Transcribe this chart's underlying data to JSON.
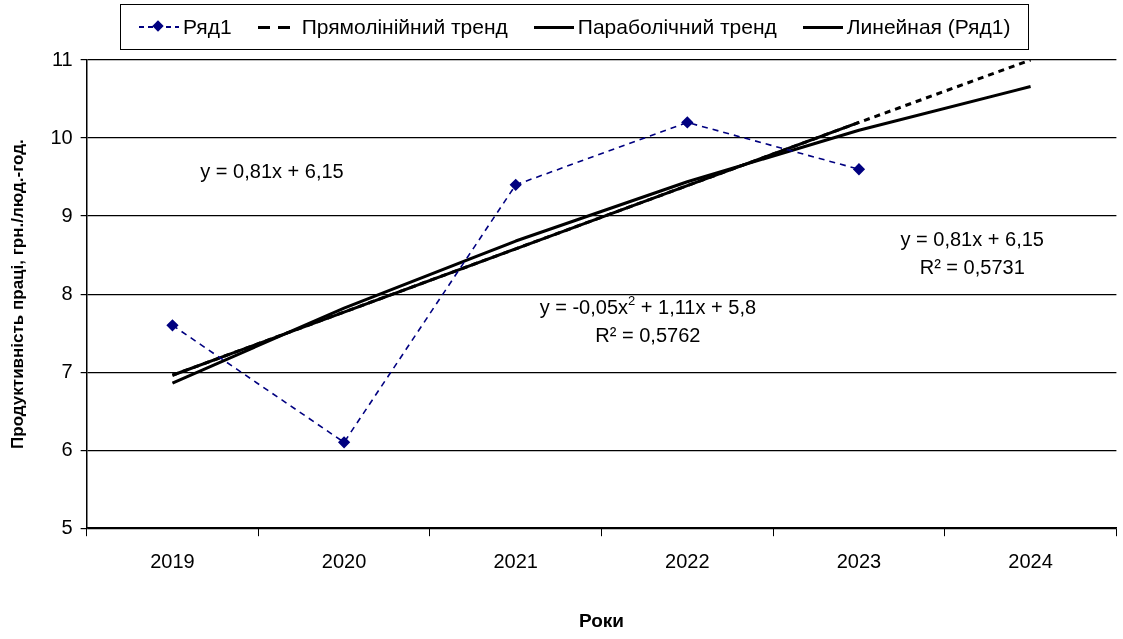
{
  "chart_data": {
    "type": "line",
    "xlabel": "Роки",
    "ylabel": "Продуктивність праці, грн./люд.-год.",
    "categories": [
      "2019",
      "2020",
      "2021",
      "2022",
      "2023",
      "2024"
    ],
    "series": [
      {
        "name": "Ряд1",
        "color": "#000080",
        "values": [
          7.6,
          6.1,
          9.4,
          10.2,
          9.6,
          null
        ],
        "line_style": "dashed",
        "marker": "diamond"
      },
      {
        "name": "Прямолінійний тренд",
        "color": "#000000",
        "values": [
          6.96,
          7.77,
          8.58,
          9.39,
          10.2,
          11.0
        ],
        "line_style": "dashed",
        "marker": "none"
      },
      {
        "name": "Параболічний тренд",
        "color": "#000000",
        "values": [
          6.86,
          7.82,
          8.68,
          9.44,
          10.1,
          10.66
        ],
        "line_style": "solid",
        "marker": "none"
      },
      {
        "name": "Линейная (Ряд1)",
        "color": "#000000",
        "values": [
          6.96,
          7.77,
          8.58,
          9.39,
          10.2,
          null
        ],
        "line_style": "solid",
        "marker": "none"
      }
    ],
    "ylim": [
      5,
      11
    ],
    "yticks": [
      5,
      6,
      7,
      8,
      9,
      10,
      11
    ],
    "grid": "y",
    "legend": "top",
    "annotations": [
      "y = 0,81x + 6,15",
      "y = 0,81x + 6,15\nR² = 0,5731",
      "y = -0,05x$^{2}$ + 1,11x + 5,8\nR² = 0,5762"
    ]
  }
}
